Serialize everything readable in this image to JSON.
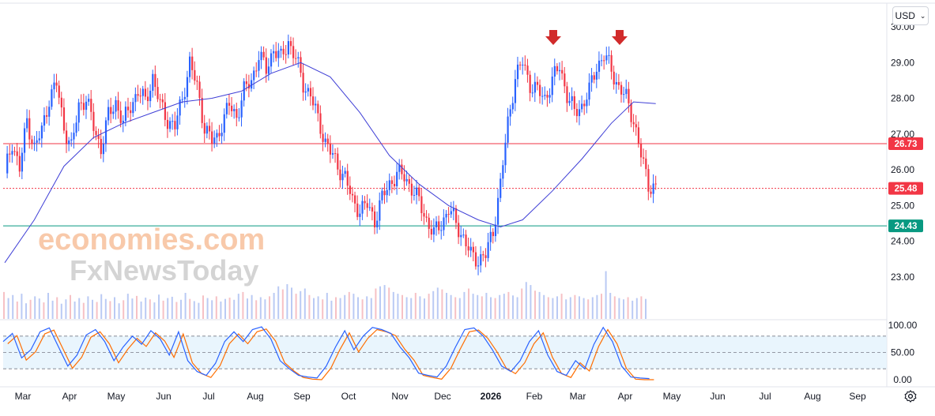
{
  "currency": {
    "label": "USD",
    "chevron": "chevron-down-icon"
  },
  "watermark": {
    "line1": "economies.com",
    "line2": "FxNewsToday"
  },
  "settings_icon": "gear-icon",
  "chart_data": {
    "type": "candlestick",
    "title": "",
    "price_axis": {
      "ticks": [
        "29.00",
        "28.00",
        "27.00",
        "26.00",
        "25.00",
        "24.00",
        "23.00"
      ],
      "top_label_partial": "30.00",
      "range": [
        22.6,
        30.0
      ]
    },
    "x_axis": {
      "ticks": [
        "Mar",
        "Apr",
        "May",
        "Jun",
        "Jul",
        "Aug",
        "Sep",
        "Oct",
        "Nov",
        "Dec",
        "2026",
        "Feb",
        "Mar",
        "Apr",
        "May",
        "Jun",
        "Jul",
        "Aug",
        "Sep"
      ]
    },
    "horizontal_lines": [
      {
        "value": 26.73,
        "label": "26.73",
        "color": "#f23645",
        "style": "solid"
      },
      {
        "value": 25.48,
        "label": "25.48",
        "color": "#f23645",
        "style": "dotted"
      },
      {
        "value": 24.43,
        "label": "24.43",
        "color": "#089981",
        "style": "solid"
      }
    ],
    "colors": {
      "up": "#2962ff",
      "down": "#f23645",
      "ma": "#3f3fd6",
      "stoch_k": "#2962ff",
      "stoch_d": "#ff6d00"
    },
    "markers": [
      {
        "type": "arrow-down",
        "color": "#d12b2b",
        "at_price": 29.4
      },
      {
        "type": "arrow-down",
        "color": "#d12b2b",
        "at_price": 29.5
      }
    ],
    "price_path": [
      [
        0,
        25.9
      ],
      [
        3,
        26.8
      ],
      [
        6,
        26.0
      ],
      [
        9,
        27.4
      ],
      [
        12,
        26.6
      ],
      [
        15,
        27.1
      ],
      [
        18,
        28.0
      ],
      [
        21,
        28.4
      ],
      [
        24,
        27.2
      ],
      [
        27,
        26.6
      ],
      [
        30,
        27.8
      ],
      [
        33,
        28.0
      ],
      [
        36,
        27.2
      ],
      [
        39,
        26.6
      ],
      [
        42,
        27.5
      ],
      [
        45,
        27.9
      ],
      [
        48,
        27.3
      ],
      [
        51,
        27.8
      ],
      [
        54,
        28.2
      ],
      [
        57,
        27.9
      ],
      [
        60,
        28.6
      ],
      [
        63,
        27.8
      ],
      [
        66,
        27.4
      ],
      [
        69,
        27.2
      ],
      [
        72,
        28.0
      ],
      [
        75,
        29.0
      ],
      [
        78,
        28.3
      ],
      [
        81,
        27.2
      ],
      [
        84,
        26.8
      ],
      [
        86,
        26.9
      ],
      [
        88,
        27.3
      ],
      [
        91,
        27.8
      ],
      [
        94,
        27.5
      ],
      [
        97,
        28.2
      ],
      [
        100,
        28.5
      ],
      [
        103,
        29.2
      ],
      [
        106,
        28.8
      ],
      [
        109,
        29.4
      ],
      [
        112,
        29.1
      ],
      [
        115,
        29.6
      ],
      [
        118,
        29.1
      ],
      [
        121,
        28.4
      ],
      [
        124,
        28.1
      ],
      [
        127,
        27.4
      ],
      [
        130,
        26.8
      ],
      [
        132,
        26.5
      ],
      [
        135,
        26.1
      ],
      [
        138,
        25.8
      ],
      [
        141,
        25.1
      ],
      [
        144,
        24.9
      ],
      [
        147,
        25.0
      ],
      [
        150,
        24.6
      ],
      [
        153,
        25.2
      ],
      [
        156,
        25.6
      ],
      [
        159,
        25.9
      ],
      [
        162,
        25.8
      ],
      [
        165,
        25.5
      ],
      [
        168,
        25.1
      ],
      [
        171,
        24.6
      ],
      [
        174,
        24.2
      ],
      [
        177,
        24.5
      ],
      [
        180,
        24.9
      ],
      [
        183,
        24.5
      ],
      [
        186,
        24.1
      ],
      [
        189,
        23.6
      ],
      [
        192,
        23.5
      ],
      [
        195,
        23.6
      ],
      [
        198,
        24.3
      ],
      [
        201,
        25.6
      ],
      [
        204,
        27.3
      ],
      [
        207,
        28.6
      ],
      [
        210,
        29.0
      ],
      [
        213,
        28.4
      ],
      [
        216,
        28.2
      ],
      [
        219,
        28.0
      ],
      [
        222,
        28.5
      ],
      [
        225,
        28.9
      ],
      [
        228,
        28.1
      ],
      [
        231,
        27.6
      ],
      [
        234,
        27.8
      ],
      [
        237,
        28.2
      ],
      [
        240,
        28.9
      ],
      [
        243,
        29.2
      ],
      [
        246,
        28.8
      ],
      [
        249,
        28.3
      ],
      [
        252,
        28.0
      ],
      [
        255,
        27.4
      ],
      [
        258,
        26.4
      ],
      [
        261,
        25.6
      ],
      [
        264,
        25.48
      ]
    ],
    "moving_average": [
      [
        0,
        23.4
      ],
      [
        12,
        24.6
      ],
      [
        24,
        26.1
      ],
      [
        36,
        26.9
      ],
      [
        48,
        27.3
      ],
      [
        60,
        27.6
      ],
      [
        72,
        27.9
      ],
      [
        84,
        28.0
      ],
      [
        96,
        28.2
      ],
      [
        108,
        28.7
      ],
      [
        120,
        29.0
      ],
      [
        132,
        28.6
      ],
      [
        144,
        27.6
      ],
      [
        156,
        26.4
      ],
      [
        168,
        25.6
      ],
      [
        180,
        25.0
      ],
      [
        192,
        24.6
      ],
      [
        201,
        24.4
      ],
      [
        210,
        24.6
      ],
      [
        222,
        25.4
      ],
      [
        234,
        26.3
      ],
      [
        246,
        27.3
      ],
      [
        255,
        27.9
      ],
      [
        264,
        27.85
      ]
    ],
    "stochastic": {
      "levels": [
        100,
        80,
        50,
        20,
        0
      ],
      "tick_labels": [
        "100.00",
        "50.00",
        "0.00"
      ],
      "k": [
        [
          0,
          70
        ],
        [
          4,
          85
        ],
        [
          8,
          40
        ],
        [
          12,
          55
        ],
        [
          16,
          88
        ],
        [
          20,
          95
        ],
        [
          24,
          60
        ],
        [
          28,
          25
        ],
        [
          32,
          45
        ],
        [
          36,
          82
        ],
        [
          40,
          92
        ],
        [
          44,
          70
        ],
        [
          48,
          35
        ],
        [
          52,
          60
        ],
        [
          56,
          80
        ],
        [
          60,
          65
        ],
        [
          64,
          90
        ],
        [
          68,
          75
        ],
        [
          72,
          45
        ],
        [
          76,
          88
        ],
        [
          80,
          35
        ],
        [
          84,
          15
        ],
        [
          88,
          8
        ],
        [
          92,
          30
        ],
        [
          96,
          70
        ],
        [
          100,
          88
        ],
        [
          104,
          70
        ],
        [
          108,
          92
        ],
        [
          112,
          97
        ],
        [
          116,
          75
        ],
        [
          120,
          35
        ],
        [
          124,
          20
        ],
        [
          128,
          8
        ],
        [
          132,
          5
        ],
        [
          136,
          3
        ],
        [
          140,
          25
        ],
        [
          144,
          60
        ],
        [
          148,
          90
        ],
        [
          152,
          55
        ],
        [
          156,
          80
        ],
        [
          160,
          96
        ],
        [
          164,
          92
        ],
        [
          168,
          85
        ],
        [
          172,
          60
        ],
        [
          176,
          40
        ],
        [
          180,
          12
        ],
        [
          184,
          8
        ],
        [
          188,
          5
        ],
        [
          192,
          25
        ],
        [
          196,
          60
        ],
        [
          200,
          92
        ],
        [
          204,
          95
        ],
        [
          208,
          80
        ],
        [
          212,
          55
        ],
        [
          216,
          25
        ],
        [
          220,
          15
        ],
        [
          224,
          35
        ],
        [
          228,
          70
        ],
        [
          232,
          90
        ],
        [
          236,
          45
        ],
        [
          240,
          15
        ],
        [
          244,
          8
        ],
        [
          248,
          35
        ],
        [
          252,
          20
        ],
        [
          256,
          65
        ],
        [
          260,
          96
        ],
        [
          264,
          70
        ],
        [
          268,
          25
        ],
        [
          272,
          5
        ],
        [
          276,
          3
        ],
        [
          280,
          2
        ]
      ]
    },
    "volume": [
      62,
      48,
      55,
      40,
      58,
      36,
      44,
      52,
      47,
      38,
      60,
      42,
      50,
      35,
      45,
      55,
      40,
      48,
      37,
      52,
      44,
      39,
      57,
      46,
      41,
      50,
      36,
      43,
      58,
      47,
      53,
      40,
      49,
      45,
      38,
      56,
      42,
      48,
      51,
      39,
      44,
      60,
      46,
      41,
      37,
      54,
      48,
      43,
      52,
      40,
      46,
      49,
      44,
      58,
      62,
      47,
      55,
      43,
      50,
      45,
      52,
      60,
      75,
      68,
      80,
      72,
      58,
      64,
      70,
      55,
      48,
      52,
      45,
      60,
      42,
      50,
      48,
      55,
      62,
      58,
      50,
      45,
      52,
      48,
      70,
      75,
      78,
      72,
      62,
      58,
      55,
      50,
      48,
      60,
      52,
      47,
      58,
      64,
      72,
      68,
      60,
      55,
      50,
      48,
      62,
      70,
      58,
      55,
      52,
      60,
      50,
      48,
      55,
      58,
      62,
      54,
      50,
      70,
      85,
      78,
      65,
      62,
      55,
      50,
      48,
      52,
      58,
      45,
      50,
      55,
      52,
      48,
      45,
      50,
      55,
      58,
      110,
      60,
      52,
      48,
      45,
      50,
      42,
      48,
      52,
      46
    ]
  }
}
